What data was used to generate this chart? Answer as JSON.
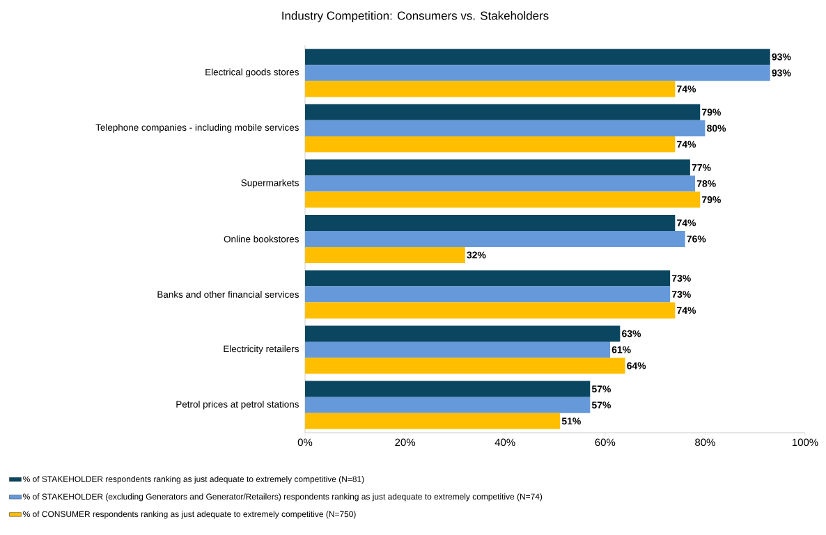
{
  "chart_data": {
    "type": "bar",
    "orientation": "horizontal",
    "title": "Industry Competition: Consumers vs. Stakeholders",
    "categories": [
      "Electrical goods stores",
      "Telephone companies - including mobile services",
      "Supermarkets",
      "Online bookstores",
      "Banks and other financial services",
      "Electricity retailers",
      "Petrol prices at petrol stations"
    ],
    "series": [
      {
        "name": "% of STAKEHOLDER respondents ranking as just adequate to extremely competitive (N=81)",
        "color": "#0b4660",
        "values": [
          93,
          79,
          77,
          74,
          73,
          63,
          57
        ],
        "value_labels": [
          "93%",
          "79%",
          "77%",
          "74%",
          "73%",
          "63%",
          "57%"
        ]
      },
      {
        "name": "% of STAKEHOLDER (excluding Generators and Generator/Retailers) respondents ranking as just adequate to extremely competitive  (N=74)",
        "color": "#6699d9",
        "values": [
          93,
          80,
          78,
          76,
          73,
          61,
          57
        ],
        "value_labels": [
          "93%",
          "80%",
          "78%",
          "76%",
          "73%",
          "61%",
          "57%"
        ]
      },
      {
        "name": "% of CONSUMER respondents ranking as just adequate to extremely competitive (N=750)",
        "color": "#ffbf00",
        "values": [
          74,
          74,
          79,
          32,
          74,
          64,
          51
        ],
        "value_labels": [
          "74%",
          "74%",
          "79%",
          "32%",
          "74%",
          "64%",
          "51%"
        ]
      }
    ],
    "xlim": [
      0,
      100
    ],
    "xticks": [
      {
        "value": 0,
        "label": "0%"
      },
      {
        "value": 20,
        "label": "20%"
      },
      {
        "value": 40,
        "label": "40%"
      },
      {
        "value": 60,
        "label": "60%"
      },
      {
        "value": 80,
        "label": "80%"
      },
      {
        "value": 100,
        "label": "100%"
      }
    ],
    "legend": "bottom"
  }
}
